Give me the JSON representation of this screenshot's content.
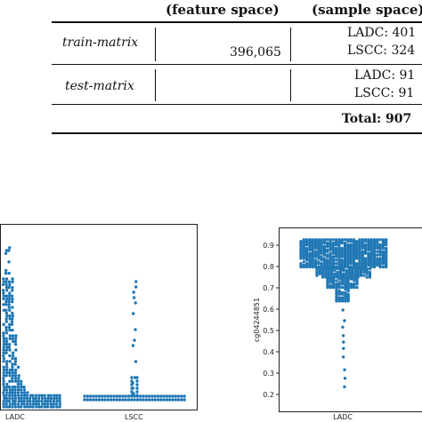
{
  "table": {
    "header_feature": "(feature space)",
    "header_sample": "(sample space)",
    "rows": [
      {
        "name": "train-matrix",
        "feature": "396,065",
        "sample_1": "LADC: 401",
        "sample_2": "LSCC: 324"
      },
      {
        "name": "test-matrix",
        "feature": "",
        "sample_1": "LADC: 91",
        "sample_2": "LSCC: 91"
      }
    ],
    "total": "Total: 907"
  },
  "chart_data": [
    {
      "type": "scatter",
      "subtype": "swarm",
      "categories": [
        "LADC",
        "LSCC"
      ],
      "series": [
        {
          "category": "LADC",
          "values_description": "dense swarm concentrated near baseline with long upward tail"
        },
        {
          "category": "LSCC",
          "values_description": "dense baseline band with sparse upward tail"
        }
      ],
      "x_tick_labels": [
        "LADC",
        "LSCC"
      ],
      "color": "#1f77b4"
    },
    {
      "type": "scatter",
      "subtype": "swarm",
      "categories": [
        "LADC"
      ],
      "ylabel": "cg04244851",
      "y_ticks": [
        0.2,
        0.3,
        0.4,
        0.5,
        0.6,
        0.7,
        0.8,
        0.9
      ],
      "y_tick_labels": [
        "0.2",
        "0.3",
        "0.4",
        "0.5",
        "0.6",
        "0.7",
        "0.8",
        "0.9"
      ],
      "ylim": [
        0.15,
        0.95
      ],
      "x_tick_labels": [
        "LADC"
      ],
      "color": "#1f77b4"
    }
  ]
}
